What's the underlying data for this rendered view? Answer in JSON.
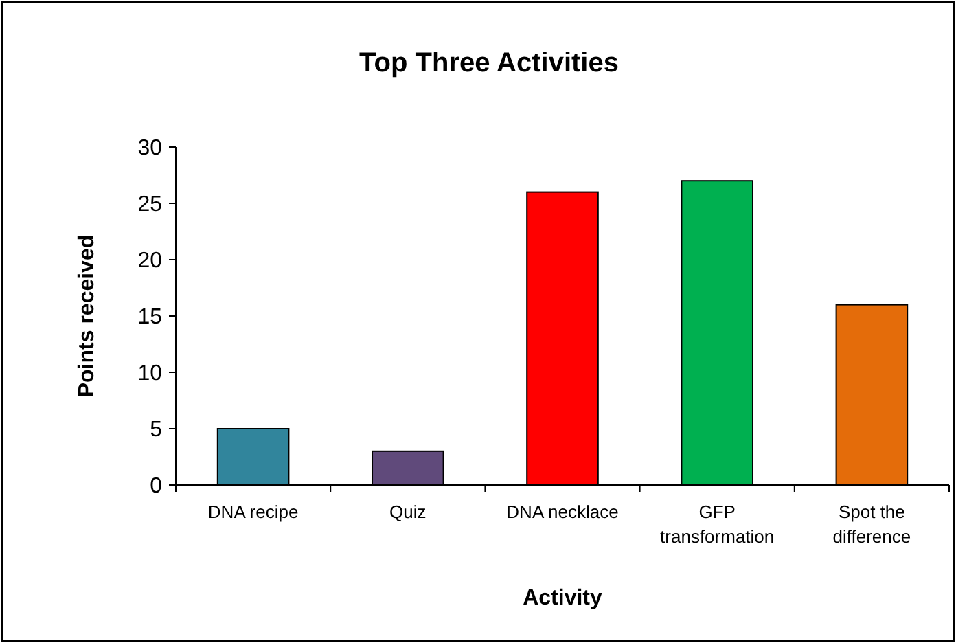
{
  "chart_data": {
    "type": "bar",
    "title": "Top Three Activities",
    "xlabel": "Activity",
    "ylabel": "Points received",
    "categories": [
      "DNA recipe",
      "Quiz",
      "DNA necklace",
      "GFP transformation",
      "Spot the difference"
    ],
    "values": [
      5,
      3,
      26,
      27,
      16
    ],
    "colors": [
      "#31859c",
      "#604a7b",
      "#ff0000",
      "#00b050",
      "#e46c0a"
    ],
    "ylim": [
      0,
      30
    ],
    "yticks": [
      0,
      5,
      10,
      15,
      20,
      25,
      30
    ],
    "grid": false
  }
}
